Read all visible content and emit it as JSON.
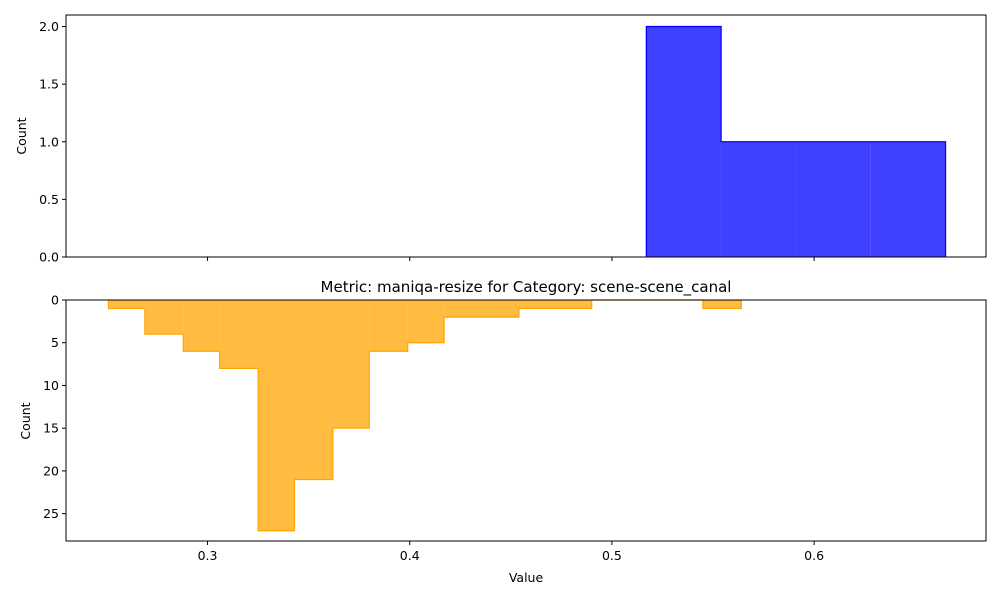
{
  "chart_data": [
    {
      "type": "histogram",
      "title": "",
      "xlabel": "",
      "ylabel": "Count",
      "xlim": [
        0.23,
        0.685
      ],
      "ylim": [
        0,
        2.1
      ],
      "y_inverted": false,
      "grid": false,
      "x_ticks": [
        0.3,
        0.4,
        0.5,
        0.6
      ],
      "x_tick_labels_shown": false,
      "y_ticks": [
        0.0,
        0.5,
        1.0,
        1.5,
        2.0
      ],
      "y_tick_labels": [
        "0.0",
        "0.5",
        "1.0",
        "1.5",
        "2.0"
      ],
      "series": [
        {
          "color": "#0000ff",
          "fill_alpha": 0.75,
          "bins": [
            {
              "x0": 0.517,
              "x1": 0.554,
              "count": 2
            },
            {
              "x0": 0.554,
              "x1": 0.591,
              "count": 1
            },
            {
              "x0": 0.591,
              "x1": 0.628,
              "count": 1
            },
            {
              "x0": 0.628,
              "x1": 0.665,
              "count": 1
            }
          ]
        }
      ]
    },
    {
      "type": "histogram",
      "title": "Metric: maniqa-resize for Category: scene-scene_canal",
      "xlabel": "Value",
      "ylabel": "Count",
      "xlim": [
        0.23,
        0.685
      ],
      "ylim": [
        0,
        28.2
      ],
      "y_inverted": true,
      "grid": false,
      "x_ticks": [
        0.3,
        0.4,
        0.5,
        0.6
      ],
      "x_tick_labels": [
        "0.3",
        "0.4",
        "0.5",
        "0.6"
      ],
      "y_ticks": [
        0,
        5,
        10,
        15,
        20,
        25
      ],
      "y_tick_labels": [
        "0",
        "5",
        "10",
        "15",
        "20",
        "25"
      ],
      "series": [
        {
          "color": "#ffa500",
          "fill_alpha": 0.75,
          "bins": [
            {
              "x0": 0.251,
              "x1": 0.269,
              "count": 1
            },
            {
              "x0": 0.269,
              "x1": 0.288,
              "count": 4
            },
            {
              "x0": 0.288,
              "x1": 0.306,
              "count": 6
            },
            {
              "x0": 0.306,
              "x1": 0.325,
              "count": 8
            },
            {
              "x0": 0.325,
              "x1": 0.343,
              "count": 27
            },
            {
              "x0": 0.343,
              "x1": 0.362,
              "count": 21
            },
            {
              "x0": 0.362,
              "x1": 0.38,
              "count": 15
            },
            {
              "x0": 0.38,
              "x1": 0.399,
              "count": 6
            },
            {
              "x0": 0.399,
              "x1": 0.417,
              "count": 5
            },
            {
              "x0": 0.417,
              "x1": 0.436,
              "count": 2
            },
            {
              "x0": 0.436,
              "x1": 0.454,
              "count": 2
            },
            {
              "x0": 0.454,
              "x1": 0.472,
              "count": 1
            },
            {
              "x0": 0.472,
              "x1": 0.49,
              "count": 1
            },
            {
              "x0": 0.49,
              "x1": 0.508,
              "count": 0
            },
            {
              "x0": 0.508,
              "x1": 0.527,
              "count": 0
            },
            {
              "x0": 0.527,
              "x1": 0.545,
              "count": 0
            },
            {
              "x0": 0.545,
              "x1": 0.564,
              "count": 1
            }
          ]
        }
      ]
    }
  ]
}
